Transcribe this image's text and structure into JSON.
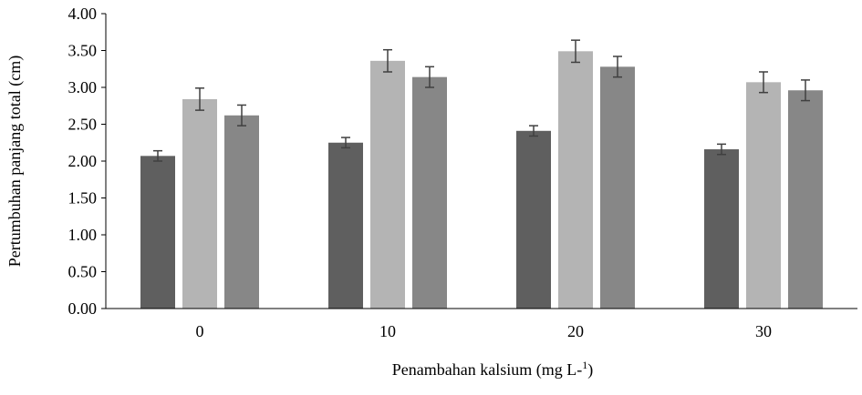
{
  "chart_data": {
    "type": "bar",
    "categories": [
      "0",
      "10",
      "20",
      "30"
    ],
    "series": [
      {
        "color": "#5f5f5f",
        "values": [
          2.07,
          2.25,
          2.41,
          2.16
        ],
        "errors": [
          0.07,
          0.07,
          0.07,
          0.07
        ]
      },
      {
        "color": "#b4b4b4",
        "values": [
          2.84,
          3.36,
          3.49,
          3.07
        ],
        "errors": [
          0.15,
          0.15,
          0.15,
          0.14
        ]
      },
      {
        "color": "#878787",
        "values": [
          2.62,
          3.14,
          3.28,
          2.96
        ],
        "errors": [
          0.14,
          0.14,
          0.14,
          0.14
        ]
      }
    ],
    "title": "",
    "xlabel": "Penambahan kalsium (mg L-1)",
    "xlabel_main": "Penambahan kalsium (mg L-",
    "xlabel_sup": "1",
    "xlabel_end": ")",
    "ylabel": "Pertumbuhan panjang total (cm)",
    "ylim": [
      0,
      4
    ],
    "yticks": [
      "0.00",
      "0.50",
      "1.00",
      "1.50",
      "2.00",
      "2.50",
      "3.00",
      "3.50",
      "4.00"
    ],
    "grid": false,
    "legend": false
  }
}
